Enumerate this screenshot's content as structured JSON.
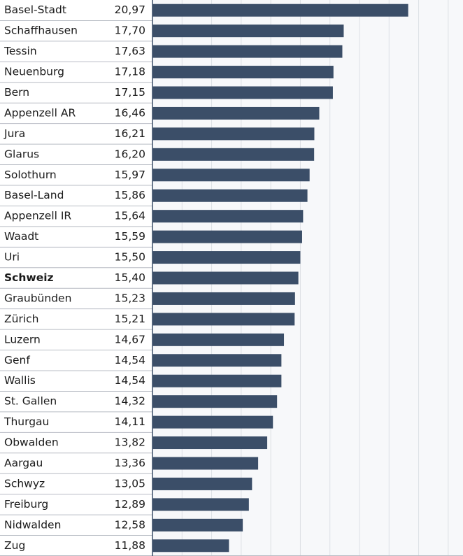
{
  "chart_data": {
    "type": "barh",
    "categories": [
      "Basel-Stadt",
      "Schaffhausen",
      "Tessin",
      "Neuenburg",
      "Bern",
      "Appenzell AR",
      "Jura",
      "Glarus",
      "Solothurn",
      "Basel-Land",
      "Appenzell IR",
      "Waadt",
      "Uri",
      "Schweiz",
      "Graubünden",
      "Zürich",
      "Luzern",
      "Genf",
      "Wallis",
      "St. Gallen",
      "Thurgau",
      "Obwalden",
      "Aargau",
      "Schwyz",
      "Freiburg",
      "Nidwalden",
      "Zug"
    ],
    "values": [
      20.97,
      17.7,
      17.63,
      17.18,
      17.15,
      16.46,
      16.21,
      16.2,
      15.97,
      15.86,
      15.64,
      15.59,
      15.5,
      15.4,
      15.23,
      15.21,
      14.67,
      14.54,
      14.54,
      14.32,
      14.11,
      13.82,
      13.36,
      13.05,
      12.89,
      12.58,
      11.88
    ],
    "value_labels": [
      "20,97",
      "17,70",
      "17,63",
      "17,18",
      "17,15",
      "16,46",
      "16,21",
      "16,20",
      "15,97",
      "15,86",
      "15,64",
      "15,59",
      "15,50",
      "15,40",
      "15,23",
      "15,21",
      "14,67",
      "14,54",
      "14,54",
      "14,32",
      "14,11",
      "13,82",
      "13,36",
      "13,05",
      "12,89",
      "12,58",
      "11,88"
    ],
    "color": "#3b4e68",
    "highlight_index": 13,
    "xlim": [
      8,
      23.75
    ],
    "xticks": [
      9.5,
      11,
      12.5,
      14,
      15.5,
      17,
      18.5,
      20,
      21.5,
      23
    ],
    "grid": true
  }
}
